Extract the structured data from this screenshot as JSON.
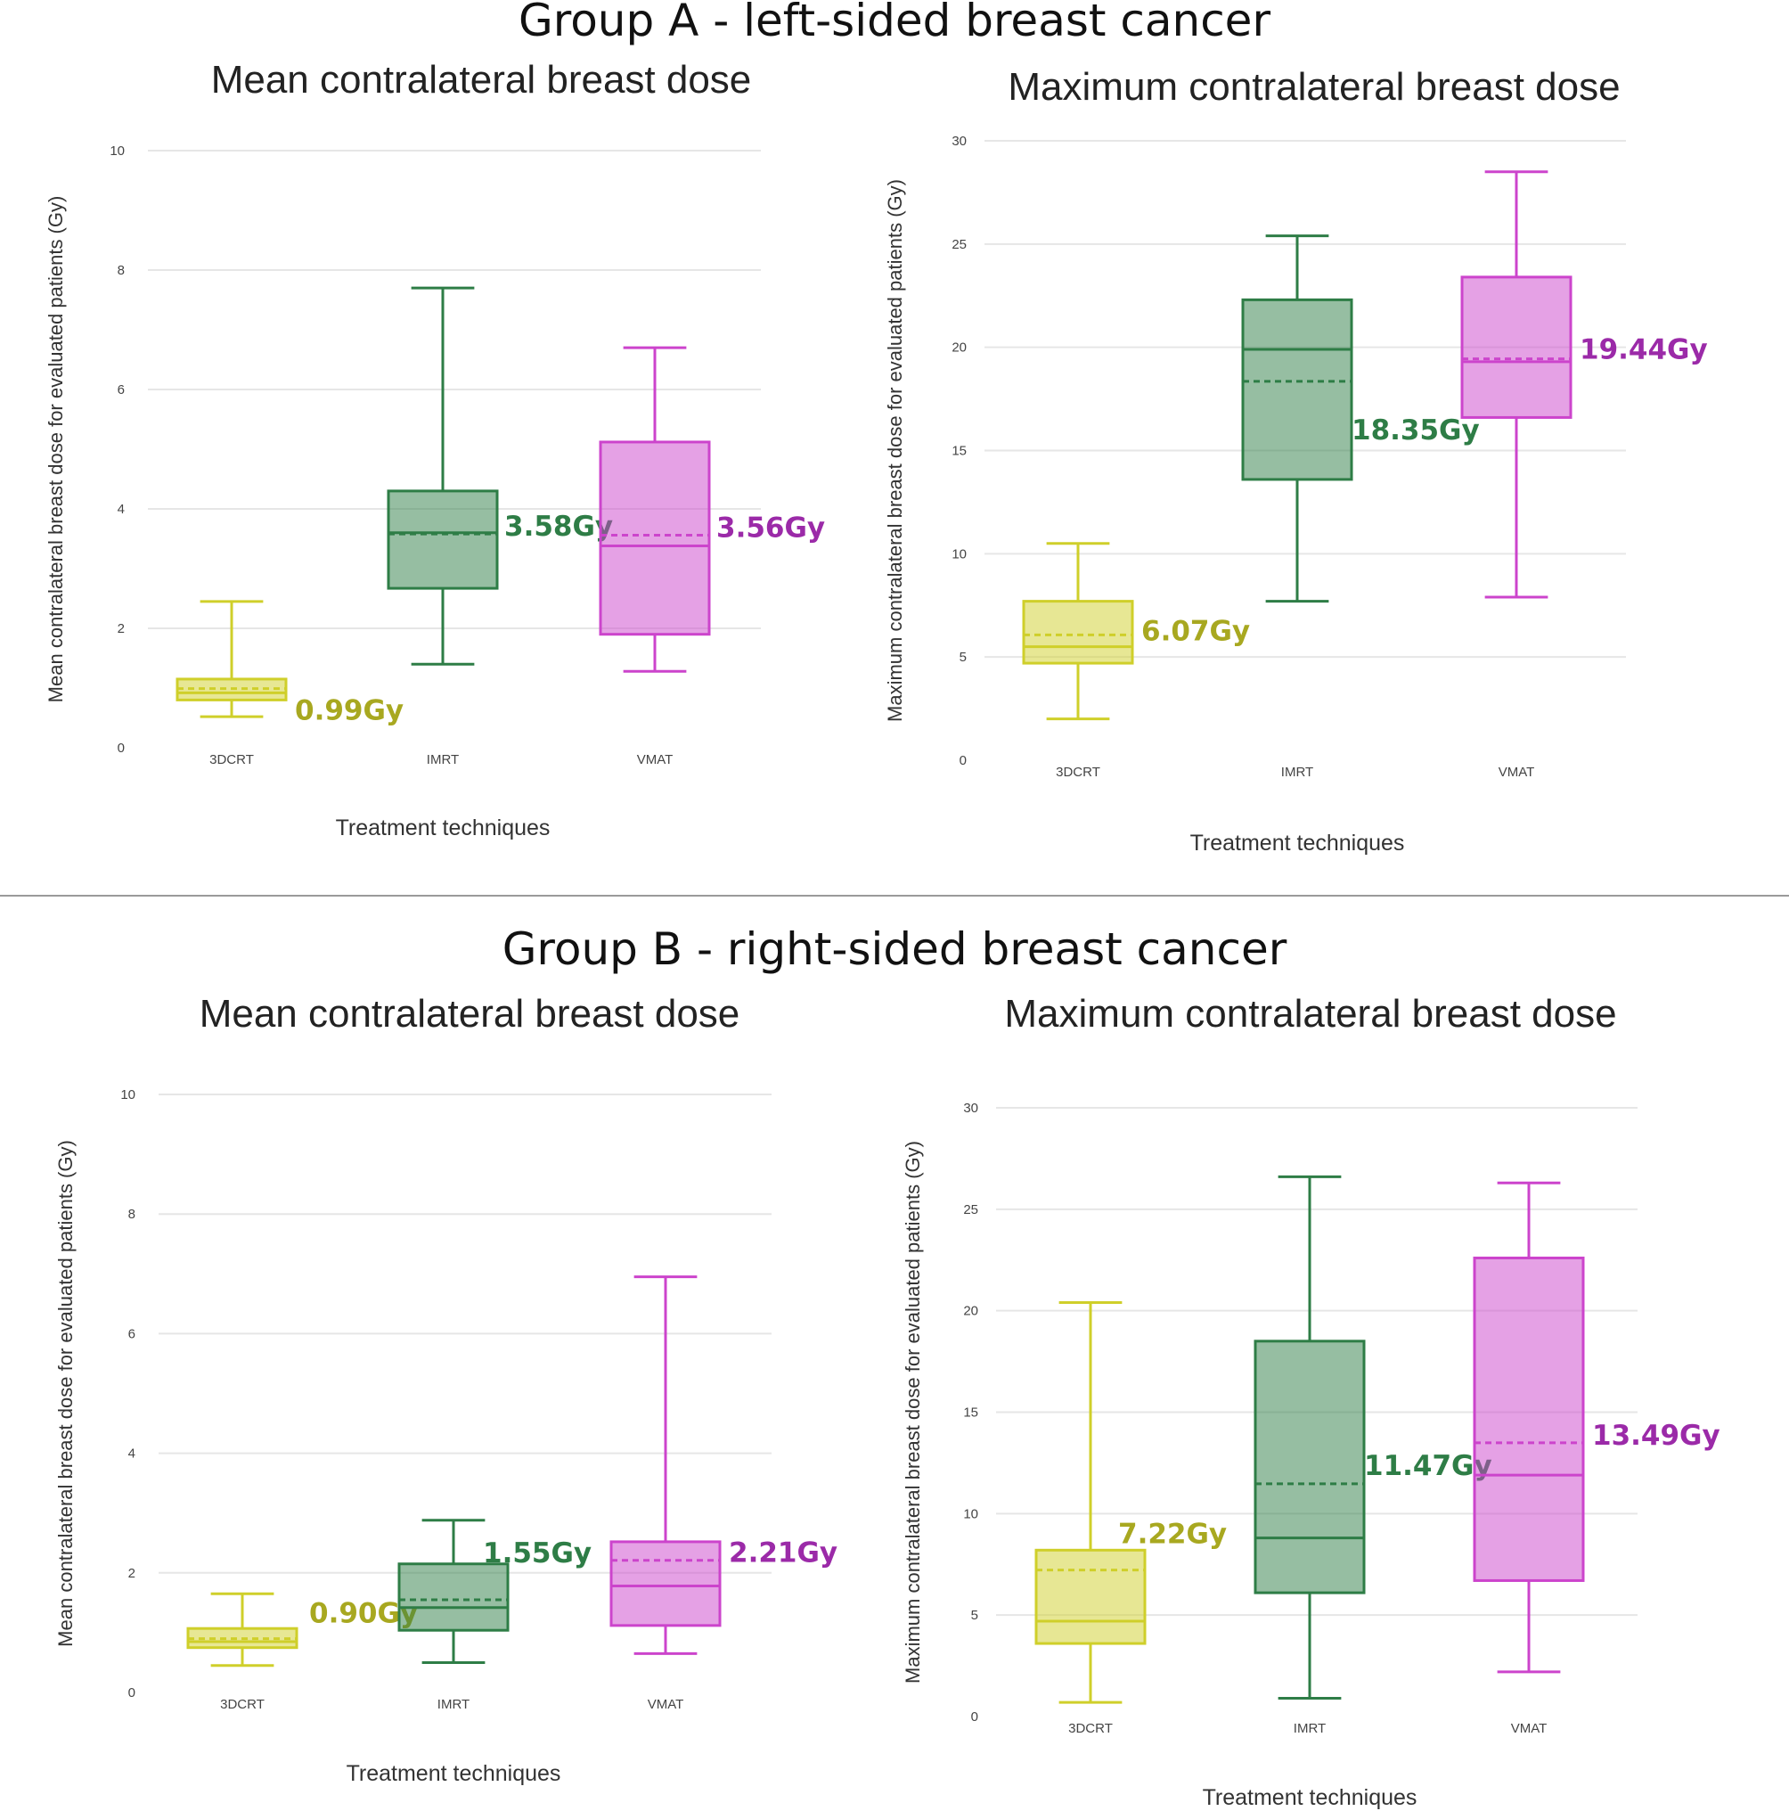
{
  "groups": [
    {
      "title": "Group A - left-sided breast cancer",
      "charts": [
        {
          "title": "Mean contralateral breast dose",
          "ylabel": "Mean contralateral breast dose for evaluated patients (Gy)",
          "xlabel": "Treatment techniques",
          "yticks": [
            "0",
            "2",
            "4",
            "6",
            "8",
            "10"
          ]
        },
        {
          "title": "Maximum contralateral breast dose",
          "ylabel": "Maximum contralateral breast dose for evaluated patients (Gy)",
          "xlabel": "Treatment techniques",
          "yticks": [
            "0",
            "5",
            "10",
            "15",
            "20",
            "25",
            "30"
          ]
        }
      ]
    },
    {
      "title": "Group B - right-sided breast cancer",
      "charts": [
        {
          "title": "Mean contralateral breast dose",
          "ylabel": "Mean contralateral breast dose for evaluated patients (Gy)",
          "xlabel": "Treatment techniques",
          "yticks": [
            "0",
            "2",
            "4",
            "6",
            "8",
            "10"
          ]
        },
        {
          "title": "Maximum contralateral breast dose",
          "ylabel": "Maximum contralateral breast dose for evaluated patients (Gy)",
          "xlabel": "Treatment techniques",
          "yticks": [
            "0",
            "5",
            "10",
            "15",
            "20",
            "25",
            "30"
          ]
        }
      ]
    }
  ],
  "colors": {
    "3DCRT": "#cfcf2a",
    "IMRT": "#2e7d46",
    "VMAT": "#cc44cc",
    "label_3DCRT": "#a8a820",
    "label_IMRT": "#2e7d46",
    "label_VMAT": "#9b2aa8"
  },
  "chart_data": [
    {
      "type": "box",
      "group": "Group A - left-sided breast cancer",
      "title": "Mean contralateral breast dose",
      "xlabel": "Treatment techniques",
      "ylabel": "Mean contralateral breast dose for evaluated patients (Gy)",
      "ylim": [
        0,
        10
      ],
      "categories": [
        "3DCRT",
        "IMRT",
        "VMAT"
      ],
      "boxes": [
        {
          "name": "3DCRT",
          "min": 0.52,
          "q1": 0.8,
          "median": 0.92,
          "q3": 1.15,
          "max": 2.45,
          "mean": 0.99,
          "label": "0.99Gy"
        },
        {
          "name": "IMRT",
          "min": 1.4,
          "q1": 2.67,
          "median": 3.6,
          "q3": 4.3,
          "max": 7.7,
          "mean": 3.58,
          "label": "3.58Gy"
        },
        {
          "name": "VMAT",
          "min": 1.28,
          "q1": 1.9,
          "median": 3.38,
          "q3": 5.12,
          "max": 6.7,
          "mean": 3.56,
          "label": "3.56Gy"
        }
      ]
    },
    {
      "type": "box",
      "group": "Group A - left-sided breast cancer",
      "title": "Maximum contralateral breast dose",
      "xlabel": "Treatment techniques",
      "ylabel": "Maximum contralateral breast dose for evaluated patients (Gy)",
      "ylim": [
        0,
        30
      ],
      "categories": [
        "3DCRT",
        "IMRT",
        "VMAT"
      ],
      "boxes": [
        {
          "name": "3DCRT",
          "min": 2.0,
          "q1": 4.7,
          "median": 5.5,
          "q3": 7.7,
          "max": 10.5,
          "mean": 6.07,
          "label": "6.07Gy"
        },
        {
          "name": "IMRT",
          "min": 7.7,
          "q1": 13.6,
          "median": 19.9,
          "q3": 22.3,
          "max": 25.4,
          "mean": 18.35,
          "label": "18.35Gy"
        },
        {
          "name": "VMAT",
          "min": 7.9,
          "q1": 16.6,
          "median": 19.3,
          "q3": 23.4,
          "max": 28.5,
          "mean": 19.44,
          "label": "19.44Gy"
        }
      ]
    },
    {
      "type": "box",
      "group": "Group B - right-sided breast cancer",
      "title": "Mean contralateral breast dose",
      "xlabel": "Treatment techniques",
      "ylabel": "Mean contralateral breast dose for evaluated patients (Gy)",
      "ylim": [
        0,
        10
      ],
      "categories": [
        "3DCRT",
        "IMRT",
        "VMAT"
      ],
      "boxes": [
        {
          "name": "3DCRT",
          "min": 0.45,
          "q1": 0.75,
          "median": 0.85,
          "q3": 1.07,
          "max": 1.65,
          "mean": 0.9,
          "label": "0.90Gy"
        },
        {
          "name": "IMRT",
          "min": 0.5,
          "q1": 1.04,
          "median": 1.42,
          "q3": 2.15,
          "max": 2.88,
          "mean": 1.55,
          "label": "1.55Gy"
        },
        {
          "name": "VMAT",
          "min": 0.65,
          "q1": 1.12,
          "median": 1.78,
          "q3": 2.52,
          "max": 6.95,
          "mean": 2.21,
          "label": "2.21Gy"
        }
      ]
    },
    {
      "type": "box",
      "group": "Group B - right-sided breast cancer",
      "title": "Maximum contralateral breast dose",
      "xlabel": "Treatment techniques",
      "ylabel": "Maximum contralateral breast dose for evaluated patients (Gy)",
      "ylim": [
        0,
        30
      ],
      "categories": [
        "3DCRT",
        "IMRT",
        "VMAT"
      ],
      "boxes": [
        {
          "name": "3DCRT",
          "min": 0.7,
          "q1": 3.6,
          "median": 4.7,
          "q3": 8.2,
          "max": 20.4,
          "mean": 7.22,
          "label": "7.22Gy"
        },
        {
          "name": "IMRT",
          "min": 0.9,
          "q1": 6.1,
          "median": 8.8,
          "q3": 18.5,
          "max": 26.6,
          "mean": 11.47,
          "label": "11.47Gy"
        },
        {
          "name": "VMAT",
          "min": 2.2,
          "q1": 6.7,
          "median": 11.9,
          "q3": 22.6,
          "max": 26.3,
          "mean": 13.49,
          "label": "13.49Gy"
        }
      ]
    }
  ]
}
